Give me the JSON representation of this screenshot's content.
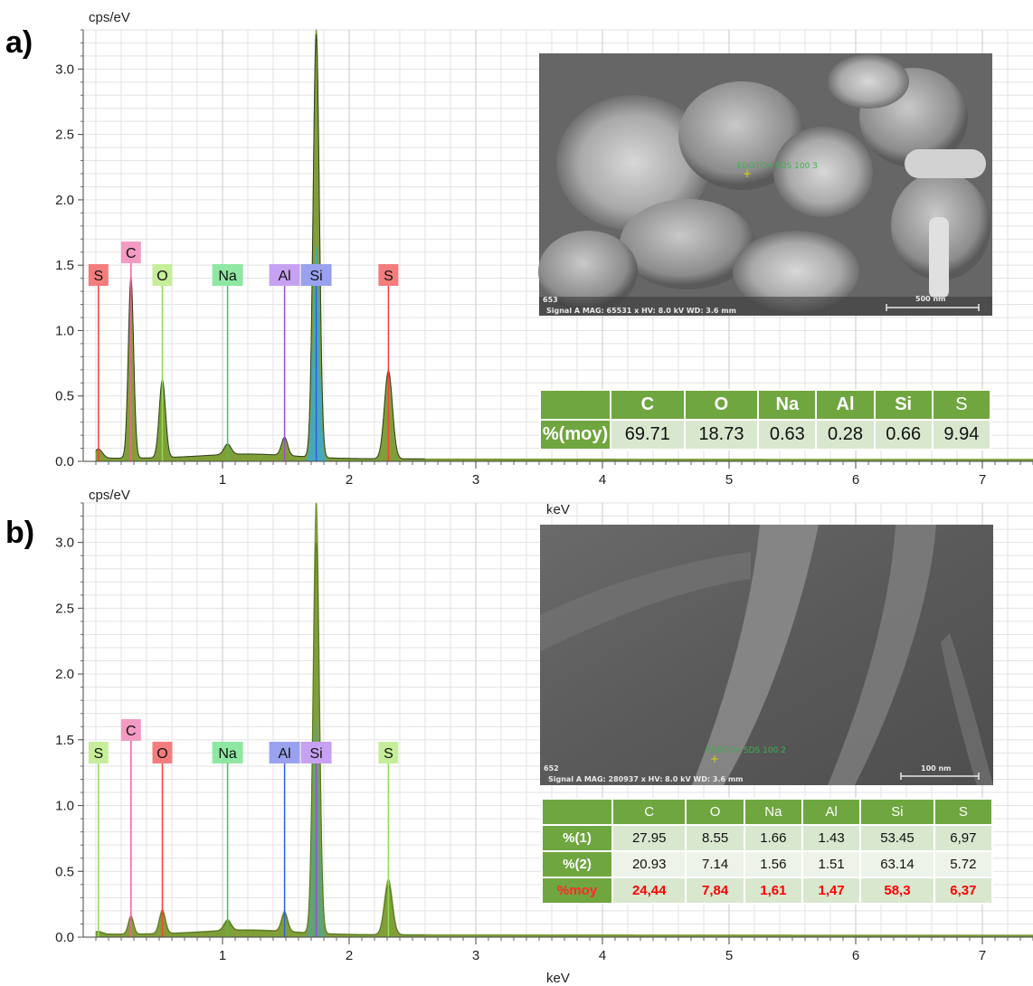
{
  "chart_data": [
    {
      "panel": "a)",
      "type": "line",
      "ylabel": "cps/eV",
      "xlabel": "keV",
      "xlim": [
        -0.1,
        7.4
      ],
      "ylim": [
        0,
        3.3
      ],
      "grid": true,
      "x_ticks": [
        "1",
        "2",
        "3",
        "4",
        "5",
        "6",
        "7"
      ],
      "y_ticks": [
        "0.0",
        "0.5",
        "1.0",
        "1.5",
        "2.0",
        "2.5",
        "3.0"
      ],
      "peaks": [
        {
          "element": "S",
          "energy": 0.02,
          "height": 0.07
        },
        {
          "element": "C",
          "energy": 0.277,
          "height": 1.4
        },
        {
          "element": "O",
          "energy": 0.525,
          "height": 0.6
        },
        {
          "element": "Na",
          "energy": 1.04,
          "height": 0.08
        },
        {
          "element": "Al",
          "energy": 1.49,
          "height": 0.14
        },
        {
          "element": "Si",
          "energy": 1.74,
          "height": 3.3
        },
        {
          "element": "S",
          "energy": 2.31,
          "height": 0.68
        }
      ],
      "labels": [
        {
          "text": "S",
          "energy": 0.02,
          "color": "#f47c7c"
        },
        {
          "text": "C",
          "energy": 0.277,
          "color": "#f39bc3"
        },
        {
          "text": "O",
          "energy": 0.525,
          "color": "#c6ee9a"
        },
        {
          "text": "Na",
          "energy": 1.04,
          "color": "#8ee8a3"
        },
        {
          "text": "Al",
          "energy": 1.49,
          "color": "#c7a2f2"
        },
        {
          "text": "Si",
          "energy": 1.74,
          "color": "#9aa2ef"
        },
        {
          "text": "S",
          "energy": 2.31,
          "color": "#f47c7c"
        }
      ],
      "line_colors": {
        "S": "#ff3b3b",
        "C": "#ff5aa0",
        "O": "#8fdc55",
        "Na": "#33cc55",
        "Al": "#9b4dd6",
        "Si": "#2f5fe0"
      },
      "table": {
        "header": [
          "",
          "C",
          "O",
          "Na",
          "Al",
          "Si",
          "S"
        ],
        "rows": [
          {
            "label": "%(moy)",
            "values": [
              "69.71",
              "18.73",
              "0.63",
              "0.28",
              "0.66",
              "9.94"
            ]
          }
        ]
      },
      "sem": {
        "id": "653",
        "info": "Signal A   MAG: 65531 x   HV: 8.0 kV   WD: 3.6 mm",
        "marker": "EDOTOH SDS 100 3",
        "scale": "500 nm"
      }
    },
    {
      "panel": "b)",
      "type": "line",
      "ylabel": "cps/eV",
      "xlabel": "keV",
      "xlim": [
        -0.1,
        7.4
      ],
      "ylim": [
        0,
        3.3
      ],
      "grid": true,
      "x_ticks": [
        "1",
        "2",
        "3",
        "4",
        "5",
        "6",
        "7"
      ],
      "y_ticks": [
        "0.0",
        "0.5",
        "1.0",
        "1.5",
        "2.0",
        "2.5",
        "3.0"
      ],
      "peaks": [
        {
          "element": "S",
          "energy": 0.02,
          "height": 0.02
        },
        {
          "element": "C",
          "energy": 0.277,
          "height": 0.14
        },
        {
          "element": "O",
          "energy": 0.525,
          "height": 0.18
        },
        {
          "element": "Na",
          "energy": 1.04,
          "height": 0.08
        },
        {
          "element": "Al",
          "energy": 1.49,
          "height": 0.15
        },
        {
          "element": "Si",
          "energy": 1.74,
          "height": 3.3
        },
        {
          "element": "S",
          "energy": 2.31,
          "height": 0.42
        }
      ],
      "labels": [
        {
          "text": "S",
          "energy": 0.02,
          "color": "#c6ee9a"
        },
        {
          "text": "C",
          "energy": 0.277,
          "color": "#f39bc3"
        },
        {
          "text": "O",
          "energy": 0.525,
          "color": "#f47c7c"
        },
        {
          "text": "Na",
          "energy": 1.04,
          "color": "#8ee8a3"
        },
        {
          "text": "Al",
          "energy": 1.49,
          "color": "#9aa2ef"
        },
        {
          "text": "Si",
          "energy": 1.74,
          "color": "#c7a2f2"
        },
        {
          "text": "S",
          "energy": 2.31,
          "color": "#c6ee9a"
        }
      ],
      "line_colors": {
        "S": "#8fdc55",
        "C": "#ff5aa0",
        "O": "#ff3b3b",
        "Na": "#33cc55",
        "Al": "#2f5fe0",
        "Si": "#9b4dd6"
      },
      "table": {
        "header": [
          "",
          "C",
          "O",
          "Na",
          "Al",
          "Si",
          "S"
        ],
        "rows": [
          {
            "label": "%(1)",
            "values": [
              "27.95",
              "8.55",
              "1.66",
              "1.43",
              "53.45",
              "6,97"
            ]
          },
          {
            "label": "%(2)",
            "values": [
              "20.93",
              "7.14",
              "1.56",
              "1.51",
              "63.14",
              "5.72"
            ]
          },
          {
            "label": "%moy",
            "values": [
              "24,44",
              "7,84",
              "1,61",
              "1,47",
              "58,3",
              "6,37"
            ],
            "highlight": "#ff0000"
          }
        ]
      },
      "sem": {
        "id": "652",
        "info": "Signal A   MAG: 280937 x   HV: 8.0 kV   WD: 3.6 mm",
        "marker": "EDOTOH SDS 100 2",
        "scale": "100 nm"
      }
    }
  ]
}
